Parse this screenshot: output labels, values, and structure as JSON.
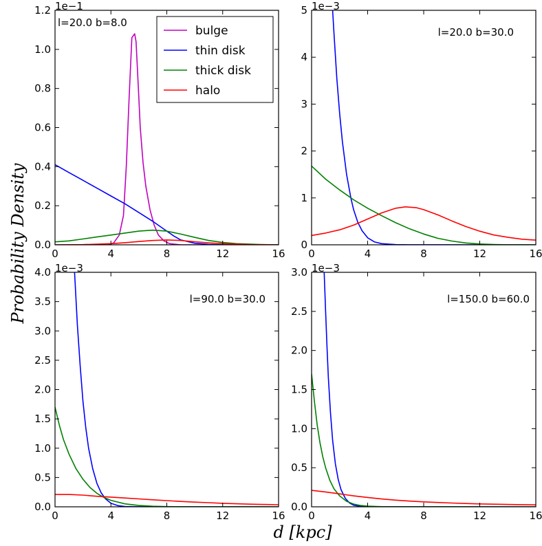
{
  "chart_data": {
    "type": "line",
    "ylabel": "Probability Density",
    "xlabel": "d [kpc]",
    "colors": {
      "bulge": "#bf00bf",
      "thin disk": "#0000ff",
      "thick disk": "#008000",
      "halo": "#ff0000"
    },
    "legend": {
      "location": "upper center of first panel",
      "entries": [
        {
          "name": "bulge",
          "color": "#bf00bf"
        },
        {
          "name": "thin disk",
          "color": "#0000ff"
        },
        {
          "name": "thick disk",
          "color": "#008000"
        },
        {
          "name": "halo",
          "color": "#ff0000"
        }
      ]
    },
    "panels": [
      {
        "id": "p1",
        "annotation": "l=20.0 b=8.0",
        "exponent_label": "1e−1",
        "xlim": [
          0,
          16
        ],
        "ylim": [
          0,
          1.2
        ],
        "xticks": [
          0,
          4,
          8,
          12,
          16
        ],
        "yticks": [
          0.0,
          0.2,
          0.4,
          0.6,
          0.8,
          1.0,
          1.2
        ],
        "ytick_labels": [
          "0.0",
          "0.2",
          "0.4",
          "0.6",
          "0.8",
          "1.0",
          "1.2"
        ],
        "series": [
          {
            "name": "bulge",
            "x": [
              0,
              3.8,
              4.2,
              4.6,
              4.9,
              5.1,
              5.3,
              5.5,
              5.6,
              5.7,
              5.8,
              5.9,
              6.0,
              6.1,
              6.3,
              6.5,
              6.8,
              7.1,
              7.4,
              7.8,
              8.2,
              9.0,
              16
            ],
            "y": [
              0,
              0,
              0.01,
              0.05,
              0.15,
              0.4,
              0.75,
              1.06,
              1.07,
              1.08,
              1.04,
              0.9,
              0.75,
              0.6,
              0.42,
              0.3,
              0.18,
              0.1,
              0.05,
              0.02,
              0.006,
              0,
              0
            ]
          },
          {
            "name": "thin disk",
            "x": [
              0,
              1,
              2,
              3,
              4,
              5,
              6,
              7,
              7.5,
              8,
              8.5,
              9,
              10,
              11,
              12,
              16
            ],
            "y": [
              0.41,
              0.37,
              0.33,
              0.29,
              0.25,
              0.21,
              0.165,
              0.12,
              0.095,
              0.07,
              0.045,
              0.025,
              0.008,
              0.002,
              0,
              0
            ]
          },
          {
            "name": "thick disk",
            "x": [
              0,
              1,
              2,
              3,
              4,
              5,
              6,
              7,
              8,
              9,
              10,
              11,
              12,
              13,
              14,
              15,
              16
            ],
            "y": [
              0.015,
              0.02,
              0.03,
              0.04,
              0.05,
              0.06,
              0.07,
              0.075,
              0.07,
              0.055,
              0.038,
              0.022,
              0.012,
              0.006,
              0.003,
              0.001,
              0
            ]
          },
          {
            "name": "halo",
            "x": [
              0,
              2,
              3,
              4,
              5,
              6,
              7,
              8,
              9,
              10,
              11,
              12,
              13,
              14,
              16
            ],
            "y": [
              0,
              0.001,
              0.003,
              0.006,
              0.011,
              0.017,
              0.022,
              0.025,
              0.022,
              0.016,
              0.01,
              0.006,
              0.003,
              0.001,
              0
            ]
          }
        ]
      },
      {
        "id": "p2",
        "annotation": "l=20.0 b=30.0",
        "exponent_label": "1e−3",
        "xlim": [
          0,
          16
        ],
        "ylim": [
          0,
          5
        ],
        "xticks": [
          0,
          4,
          8,
          12,
          16
        ],
        "yticks": [
          0,
          1,
          2,
          3,
          4,
          5
        ],
        "ytick_labels": [
          "0",
          "1",
          "2",
          "3",
          "4",
          "5"
        ],
        "series": [
          {
            "name": "thin disk",
            "x": [
              1.5,
              1.6,
              1.8,
              2.0,
              2.2,
              2.5,
              2.8,
              3.0,
              3.3,
              3.6,
              4.0,
              4.5,
              5.0,
              6.0,
              7.0,
              16
            ],
            "y": [
              5.0,
              4.5,
              3.55,
              2.8,
              2.2,
              1.5,
              1.0,
              0.75,
              0.48,
              0.3,
              0.15,
              0.06,
              0.025,
              0.004,
              0.001,
              0
            ]
          },
          {
            "name": "thick disk",
            "x": [
              0,
              1,
              2,
              3,
              4,
              5,
              6,
              7,
              8,
              9,
              10,
              11,
              12,
              13,
              14,
              16
            ],
            "y": [
              1.68,
              1.4,
              1.17,
              0.96,
              0.78,
              0.62,
              0.47,
              0.34,
              0.23,
              0.14,
              0.08,
              0.04,
              0.018,
              0.007,
              0.002,
              0
            ]
          },
          {
            "name": "halo",
            "x": [
              0,
              1,
              2,
              3,
              4,
              5,
              6,
              6.7,
              7.5,
              8,
              9,
              10,
              11,
              12,
              13,
              14,
              15,
              16
            ],
            "y": [
              0.2,
              0.25,
              0.32,
              0.42,
              0.55,
              0.68,
              0.78,
              0.81,
              0.79,
              0.75,
              0.64,
              0.51,
              0.39,
              0.29,
              0.21,
              0.16,
              0.12,
              0.1
            ]
          }
        ]
      },
      {
        "id": "p3",
        "annotation": "l=90.0 b=30.0",
        "exponent_label": "1e−3",
        "xlim": [
          0,
          16
        ],
        "ylim": [
          0,
          4.0
        ],
        "xticks": [
          0,
          4,
          8,
          12,
          16
        ],
        "yticks": [
          0.0,
          0.5,
          1.0,
          1.5,
          2.0,
          2.5,
          3.0,
          3.5,
          4.0
        ],
        "ytick_labels": [
          "0.0",
          "0.5",
          "1.0",
          "1.5",
          "2.0",
          "2.5",
          "3.0",
          "3.5",
          "4.0"
        ],
        "series": [
          {
            "name": "thin disk",
            "x": [
              1.4,
              1.6,
              1.8,
              2.0,
              2.2,
              2.4,
              2.7,
              3.0,
              3.3,
              3.6,
              4.0,
              4.5,
              5.0,
              6.0,
              16
            ],
            "y": [
              4.0,
              3.1,
              2.4,
              1.8,
              1.35,
              1.0,
              0.65,
              0.4,
              0.24,
              0.14,
              0.06,
              0.02,
              0.006,
              0.001,
              0
            ]
          },
          {
            "name": "thick disk",
            "x": [
              0,
              0.3,
              0.6,
              1.0,
              1.5,
              2.0,
              2.5,
              3.0,
              3.5,
              4.0,
              5.0,
              6.0,
              7.0,
              8.0,
              10,
              16
            ],
            "y": [
              1.7,
              1.4,
              1.15,
              0.9,
              0.65,
              0.47,
              0.33,
              0.23,
              0.16,
              0.11,
              0.05,
              0.022,
              0.009,
              0.004,
              0.001,
              0
            ]
          },
          {
            "name": "halo",
            "x": [
              0,
              1,
              2,
              3,
              4,
              5,
              6,
              7,
              8,
              9,
              10,
              11,
              12,
              13,
              14,
              15,
              16
            ],
            "y": [
              0.21,
              0.21,
              0.2,
              0.18,
              0.165,
              0.15,
              0.135,
              0.12,
              0.105,
              0.092,
              0.08,
              0.07,
              0.06,
              0.052,
              0.045,
              0.04,
              0.035
            ]
          }
        ]
      },
      {
        "id": "p4",
        "annotation": "l=150.0 b=60.0",
        "exponent_label": "1e−3",
        "xlim": [
          0,
          16
        ],
        "ylim": [
          0,
          3.0
        ],
        "xticks": [
          0,
          4,
          8,
          12,
          16
        ],
        "yticks": [
          0.0,
          0.5,
          1.0,
          1.5,
          2.0,
          2.5,
          3.0
        ],
        "ytick_labels": [
          "0.0",
          "0.5",
          "1.0",
          "1.5",
          "2.0",
          "2.5",
          "3.0"
        ],
        "series": [
          {
            "name": "thin disk",
            "x": [
              0.9,
              1.0,
              1.1,
              1.2,
              1.35,
              1.5,
              1.7,
              1.9,
              2.1,
              2.4,
              2.7,
              3.0,
              3.5,
              4.0,
              16
            ],
            "y": [
              3.0,
              2.5,
              2.05,
              1.65,
              1.2,
              0.85,
              0.55,
              0.35,
              0.22,
              0.11,
              0.05,
              0.02,
              0.005,
              0.001,
              0
            ]
          },
          {
            "name": "thick disk",
            "x": [
              0,
              0.2,
              0.4,
              0.6,
              0.8,
              1.0,
              1.3,
              1.6,
              2.0,
              2.5,
              3.0,
              3.5,
              4.0,
              5.0,
              6.0,
              16
            ],
            "y": [
              1.7,
              1.35,
              1.05,
              0.82,
              0.64,
              0.5,
              0.34,
              0.23,
              0.14,
              0.07,
              0.035,
              0.017,
              0.008,
              0.002,
              0.001,
              0
            ]
          },
          {
            "name": "halo",
            "x": [
              0,
              1,
              2,
              3,
              4,
              5,
              6,
              7,
              8,
              9,
              10,
              11,
              12,
              13,
              14,
              15,
              16
            ],
            "y": [
              0.21,
              0.19,
              0.165,
              0.14,
              0.12,
              0.1,
              0.085,
              0.073,
              0.063,
              0.055,
              0.048,
              0.042,
              0.037,
              0.033,
              0.03,
              0.027,
              0.025
            ]
          }
        ]
      }
    ]
  }
}
